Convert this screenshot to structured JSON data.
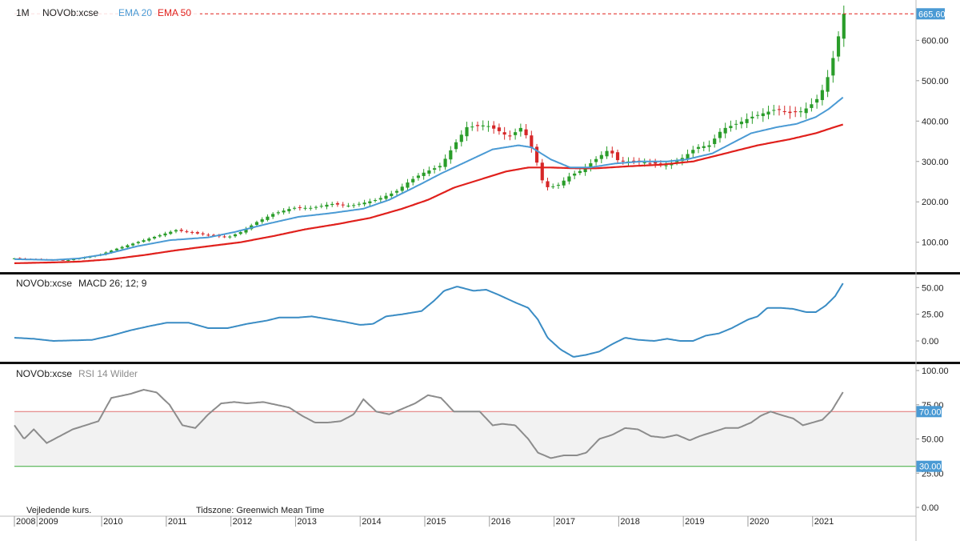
{
  "header": {
    "interval": "1M",
    "symbol": "NOVOb:xcse",
    "ema20_label": "EMA 20",
    "ema50_label": "EMA 50",
    "last_price_label": "665.60"
  },
  "macd_header": {
    "symbol": "NOVOb:xcse",
    "label": "MACD 26; 12; 9"
  },
  "rsi_header": {
    "symbol": "NOVOb:xcse",
    "label": "RSI 14 Wilder"
  },
  "footer": {
    "note": "Vejledende kurs.",
    "timezone": "Tidszone: Greenwich Mean Time"
  },
  "colors": {
    "up": "#2a9d2a",
    "down": "#d62728",
    "ema20": "#4a9ad4",
    "ema50": "#e0201c",
    "macd": "#3a8cc4",
    "rsi": "#8c8c8c",
    "rsi_upper": "#e07070",
    "rsi_lower": "#3aaa3a",
    "price_badge": "#4a9ad4",
    "band": "#f2f2f2"
  },
  "chart_data": [
    {
      "type": "candlestick",
      "name": "price",
      "ylim": [
        30,
        680
      ],
      "yticks": [
        "100.00",
        "200.00",
        "300.00",
        "400.00",
        "500.00",
        "600.00"
      ],
      "x_axis": {
        "range": [
          2008.0,
          2021.95
        ],
        "ticks": [
          {
            "label": "2008",
            "x": 2008.0
          },
          {
            "label": "2009",
            "x": 2008.35
          },
          {
            "label": "2010",
            "x": 2009.35
          },
          {
            "label": "2011",
            "x": 2010.35
          },
          {
            "label": "2012",
            "x": 2011.35
          },
          {
            "label": "2013",
            "x": 2012.35
          },
          {
            "label": "2014",
            "x": 2013.35
          },
          {
            "label": "2015",
            "x": 2014.35
          },
          {
            "label": "2016",
            "x": 2015.35
          },
          {
            "label": "2017",
            "x": 2016.35
          },
          {
            "label": "2018",
            "x": 2017.35
          },
          {
            "label": "2019",
            "x": 2018.35
          },
          {
            "label": "2020",
            "x": 2019.35
          },
          {
            "label": "2021",
            "x": 2020.35
          }
        ]
      },
      "price_keyframes": [
        [
          2008.0,
          60
        ],
        [
          2008.3,
          58
        ],
        [
          2008.8,
          55
        ],
        [
          2009.0,
          60
        ],
        [
          2009.3,
          68
        ],
        [
          2009.6,
          85
        ],
        [
          2009.9,
          100
        ],
        [
          2010.2,
          115
        ],
        [
          2010.5,
          130
        ],
        [
          2010.9,
          120
        ],
        [
          2011.3,
          112
        ],
        [
          2011.5,
          125
        ],
        [
          2011.75,
          150
        ],
        [
          2012.0,
          170
        ],
        [
          2012.3,
          185
        ],
        [
          2012.6,
          185
        ],
        [
          2012.9,
          195
        ],
        [
          2013.2,
          190
        ],
        [
          2013.6,
          205
        ],
        [
          2013.9,
          225
        ],
        [
          2014.1,
          250
        ],
        [
          2014.3,
          270
        ],
        [
          2014.6,
          290
        ],
        [
          2014.8,
          340
        ],
        [
          2015.0,
          385
        ],
        [
          2015.3,
          390
        ],
        [
          2015.5,
          375
        ],
        [
          2015.65,
          360
        ],
        [
          2015.85,
          385
        ],
        [
          2015.95,
          355
        ],
        [
          2016.1,
          290
        ],
        [
          2016.2,
          235
        ],
        [
          2016.4,
          240
        ],
        [
          2016.6,
          265
        ],
        [
          2016.8,
          280
        ],
        [
          2016.95,
          300
        ],
        [
          2017.2,
          330
        ],
        [
          2017.35,
          300
        ],
        [
          2017.6,
          300
        ],
        [
          2017.9,
          295
        ],
        [
          2018.1,
          290
        ],
        [
          2018.35,
          310
        ],
        [
          2018.55,
          335
        ],
        [
          2018.75,
          340
        ],
        [
          2018.95,
          380
        ],
        [
          2019.2,
          395
        ],
        [
          2019.4,
          410
        ],
        [
          2019.6,
          420
        ],
        [
          2019.8,
          430
        ],
        [
          2020.0,
          420
        ],
        [
          2020.2,
          425
        ],
        [
          2020.4,
          450
        ],
        [
          2020.55,
          490
        ],
        [
          2020.7,
          575
        ],
        [
          2020.83,
          665.6
        ]
      ],
      "ema20_keyframes": [
        [
          2008.0,
          58
        ],
        [
          2008.6,
          56
        ],
        [
          2009.0,
          60
        ],
        [
          2009.4,
          70
        ],
        [
          2009.9,
          90
        ],
        [
          2010.4,
          105
        ],
        [
          2011.0,
          112
        ],
        [
          2011.4,
          125
        ],
        [
          2011.9,
          145
        ],
        [
          2012.4,
          163
        ],
        [
          2012.9,
          172
        ],
        [
          2013.4,
          183
        ],
        [
          2013.8,
          205
        ],
        [
          2014.3,
          245
        ],
        [
          2014.6,
          270
        ],
        [
          2015.0,
          300
        ],
        [
          2015.4,
          330
        ],
        [
          2015.8,
          340
        ],
        [
          2016.0,
          335
        ],
        [
          2016.3,
          305
        ],
        [
          2016.6,
          285
        ],
        [
          2016.9,
          285
        ],
        [
          2017.3,
          295
        ],
        [
          2017.7,
          300
        ],
        [
          2018.1,
          300
        ],
        [
          2018.4,
          305
        ],
        [
          2018.8,
          320
        ],
        [
          2019.1,
          345
        ],
        [
          2019.4,
          370
        ],
        [
          2019.8,
          385
        ],
        [
          2020.1,
          393
        ],
        [
          2020.4,
          410
        ],
        [
          2020.6,
          430
        ],
        [
          2020.83,
          460
        ]
      ],
      "ema50_keyframes": [
        [
          2008.0,
          48
        ],
        [
          2008.6,
          50
        ],
        [
          2009.0,
          52
        ],
        [
          2009.5,
          58
        ],
        [
          2010.0,
          68
        ],
        [
          2010.5,
          80
        ],
        [
          2011.0,
          90
        ],
        [
          2011.5,
          100
        ],
        [
          2012.0,
          115
        ],
        [
          2012.5,
          132
        ],
        [
          2013.0,
          145
        ],
        [
          2013.5,
          160
        ],
        [
          2014.0,
          183
        ],
        [
          2014.4,
          205
        ],
        [
          2014.8,
          235
        ],
        [
          2015.2,
          255
        ],
        [
          2015.6,
          275
        ],
        [
          2015.95,
          285
        ],
        [
          2016.3,
          285
        ],
        [
          2016.7,
          283
        ],
        [
          2017.0,
          283
        ],
        [
          2017.5,
          288
        ],
        [
          2018.0,
          292
        ],
        [
          2018.5,
          300
        ],
        [
          2019.0,
          320
        ],
        [
          2019.5,
          340
        ],
        [
          2020.0,
          355
        ],
        [
          2020.4,
          370
        ],
        [
          2020.65,
          383
        ],
        [
          2020.83,
          392
        ]
      ]
    },
    {
      "type": "line",
      "name": "MACD 26; 12; 9",
      "ylim": [
        -18,
        60
      ],
      "yticks": [
        "0.00",
        "25.00",
        "50.00"
      ],
      "keyframes": [
        [
          2008.0,
          3
        ],
        [
          2008.3,
          2
        ],
        [
          2008.6,
          0
        ],
        [
          2008.9,
          0.5
        ],
        [
          2009.2,
          1
        ],
        [
          2009.5,
          5
        ],
        [
          2009.8,
          10
        ],
        [
          2010.1,
          14
        ],
        [
          2010.35,
          17
        ],
        [
          2010.7,
          17
        ],
        [
          2011.0,
          12
        ],
        [
          2011.3,
          12
        ],
        [
          2011.6,
          16
        ],
        [
          2011.9,
          19
        ],
        [
          2012.1,
          22
        ],
        [
          2012.4,
          22
        ],
        [
          2012.6,
          23
        ],
        [
          2012.8,
          21
        ],
        [
          2013.1,
          18
        ],
        [
          2013.35,
          15
        ],
        [
          2013.55,
          16
        ],
        [
          2013.75,
          23
        ],
        [
          2014.0,
          25
        ],
        [
          2014.3,
          28
        ],
        [
          2014.5,
          38
        ],
        [
          2014.65,
          47
        ],
        [
          2014.85,
          51
        ],
        [
          2015.1,
          47
        ],
        [
          2015.3,
          48
        ],
        [
          2015.5,
          43
        ],
        [
          2015.75,
          36
        ],
        [
          2015.95,
          31
        ],
        [
          2016.1,
          20
        ],
        [
          2016.25,
          3
        ],
        [
          2016.45,
          -8
        ],
        [
          2016.65,
          -15
        ],
        [
          2016.85,
          -13
        ],
        [
          2017.05,
          -10
        ],
        [
          2017.25,
          -3
        ],
        [
          2017.45,
          3
        ],
        [
          2017.65,
          1
        ],
        [
          2017.9,
          0
        ],
        [
          2018.1,
          2
        ],
        [
          2018.3,
          0
        ],
        [
          2018.5,
          0
        ],
        [
          2018.7,
          5
        ],
        [
          2018.9,
          7
        ],
        [
          2019.1,
          12
        ],
        [
          2019.35,
          20
        ],
        [
          2019.5,
          23
        ],
        [
          2019.65,
          31
        ],
        [
          2019.85,
          31
        ],
        [
          2020.05,
          30
        ],
        [
          2020.25,
          27
        ],
        [
          2020.4,
          27
        ],
        [
          2020.55,
          33
        ],
        [
          2020.7,
          42
        ],
        [
          2020.83,
          55
        ]
      ]
    },
    {
      "type": "line",
      "name": "RSI 14 Wilder",
      "ylim": [
        0,
        100
      ],
      "yticks": [
        "0.00",
        "25.00",
        "50.00",
        "75.00",
        "100.00"
      ],
      "levels": [
        {
          "value": 70,
          "label": "70.00"
        },
        {
          "value": 30,
          "label": "30.00"
        }
      ],
      "keyframes": [
        [
          2008.0,
          60
        ],
        [
          2008.15,
          50
        ],
        [
          2008.3,
          57
        ],
        [
          2008.5,
          47
        ],
        [
          2008.7,
          52
        ],
        [
          2008.9,
          57
        ],
        [
          2009.1,
          60
        ],
        [
          2009.3,
          63
        ],
        [
          2009.5,
          80
        ],
        [
          2009.8,
          83
        ],
        [
          2010.0,
          86
        ],
        [
          2010.2,
          84
        ],
        [
          2010.4,
          75
        ],
        [
          2010.6,
          60
        ],
        [
          2010.8,
          58
        ],
        [
          2011.0,
          68
        ],
        [
          2011.2,
          76
        ],
        [
          2011.4,
          77
        ],
        [
          2011.6,
          76
        ],
        [
          2011.85,
          77
        ],
        [
          2012.05,
          75
        ],
        [
          2012.25,
          73
        ],
        [
          2012.45,
          67
        ],
        [
          2012.65,
          62
        ],
        [
          2012.85,
          62
        ],
        [
          2013.05,
          63
        ],
        [
          2013.25,
          68
        ],
        [
          2013.4,
          79
        ],
        [
          2013.6,
          70
        ],
        [
          2013.8,
          68
        ],
        [
          2014.0,
          72
        ],
        [
          2014.2,
          76
        ],
        [
          2014.4,
          82
        ],
        [
          2014.6,
          80
        ],
        [
          2014.8,
          70
        ],
        [
          2015.0,
          70
        ],
        [
          2015.2,
          70
        ],
        [
          2015.4,
          60
        ],
        [
          2015.55,
          61
        ],
        [
          2015.75,
          60
        ],
        [
          2015.95,
          50
        ],
        [
          2016.1,
          40
        ],
        [
          2016.3,
          36
        ],
        [
          2016.5,
          38
        ],
        [
          2016.7,
          38
        ],
        [
          2016.85,
          40
        ],
        [
          2017.05,
          50
        ],
        [
          2017.25,
          53
        ],
        [
          2017.45,
          58
        ],
        [
          2017.65,
          57
        ],
        [
          2017.85,
          52
        ],
        [
          2018.05,
          51
        ],
        [
          2018.25,
          53
        ],
        [
          2018.45,
          49
        ],
        [
          2018.6,
          52
        ],
        [
          2018.8,
          55
        ],
        [
          2019.0,
          58
        ],
        [
          2019.2,
          58
        ],
        [
          2019.4,
          62
        ],
        [
          2019.55,
          67
        ],
        [
          2019.7,
          70
        ],
        [
          2019.9,
          67
        ],
        [
          2020.05,
          65
        ],
        [
          2020.2,
          60
        ],
        [
          2020.35,
          62
        ],
        [
          2020.5,
          64
        ],
        [
          2020.65,
          71
        ],
        [
          2020.83,
          85
        ]
      ]
    }
  ]
}
